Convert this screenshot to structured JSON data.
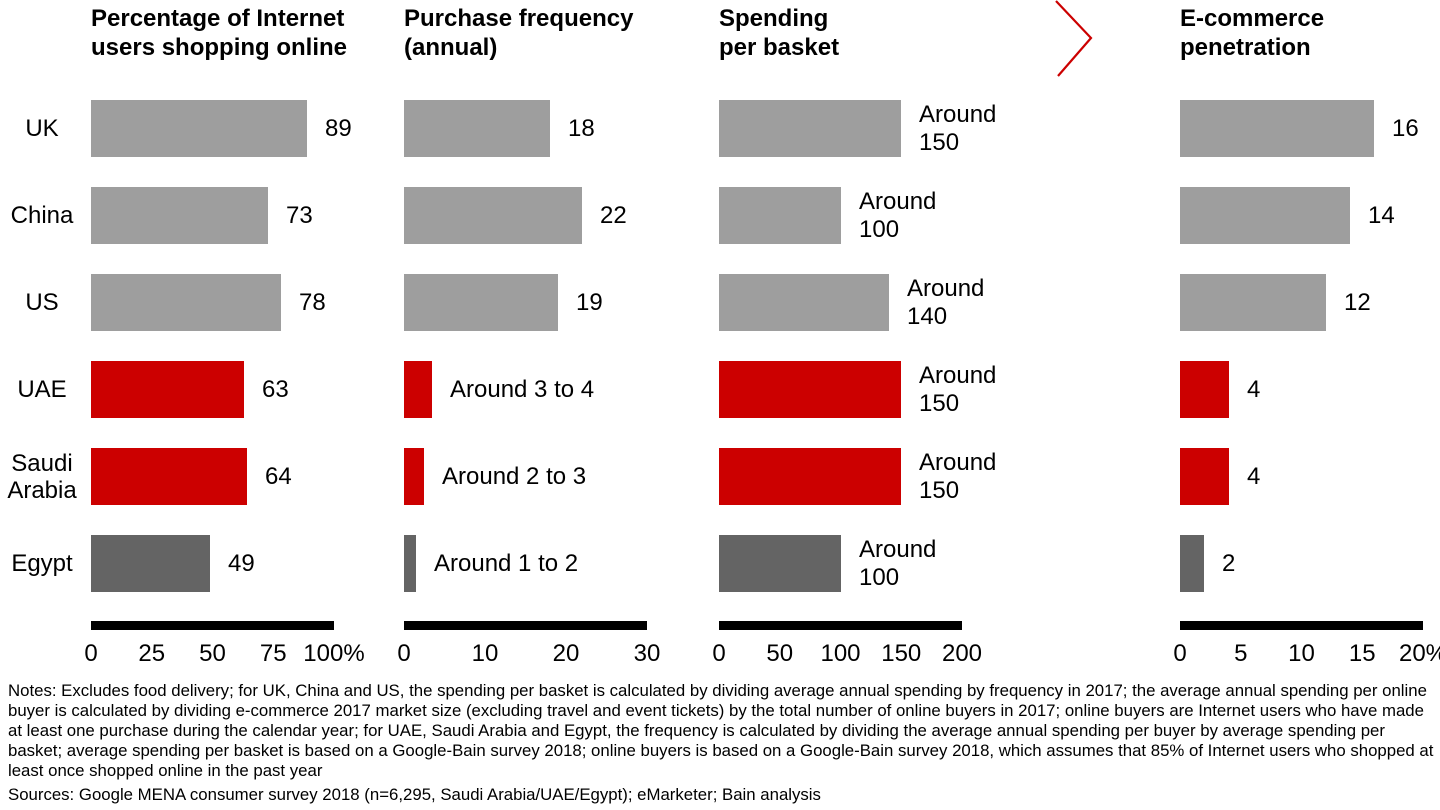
{
  "colors": {
    "bar_gray": "#9e9e9e",
    "bar_dark_gray": "#646464",
    "bar_red": "#cc0000",
    "axis_black": "#000000",
    "chevron_red": "#cc0000"
  },
  "countries": [
    {
      "name": "UK",
      "label_lines": [
        "UK"
      ],
      "color": "gray"
    },
    {
      "name": "China",
      "label_lines": [
        "China"
      ],
      "color": "gray"
    },
    {
      "name": "US",
      "label_lines": [
        "US"
      ],
      "color": "gray"
    },
    {
      "name": "UAE",
      "label_lines": [
        "UAE"
      ],
      "color": "red"
    },
    {
      "name": "Saudi Arabia",
      "label_lines": [
        "Saudi",
        "Arabia"
      ],
      "color": "red"
    },
    {
      "name": "Egypt",
      "label_lines": [
        "Egypt"
      ],
      "color": "dark"
    }
  ],
  "chart_data": [
    {
      "type": "bar",
      "orientation": "horizontal",
      "title": "Percentage of Internet users shopping online",
      "title_lines": [
        "Percentage of Internet",
        "users shopping online"
      ],
      "categories": [
        "UK",
        "China",
        "US",
        "UAE",
        "Saudi Arabia",
        "Egypt"
      ],
      "values": [
        89,
        73,
        78,
        63,
        64,
        49
      ],
      "value_labels": [
        [
          "89"
        ],
        [
          "73"
        ],
        [
          "78"
        ],
        [
          "63"
        ],
        [
          "64"
        ],
        [
          "49"
        ]
      ],
      "xlim": [
        0,
        100
      ],
      "tick_labels": [
        "0",
        "25",
        "50",
        "75",
        "100%"
      ],
      "grid": false,
      "legend": null
    },
    {
      "type": "bar",
      "orientation": "horizontal",
      "title": "Purchase frequency (annual)",
      "title_lines": [
        "Purchase frequency",
        "(annual)"
      ],
      "categories": [
        "UK",
        "China",
        "US",
        "UAE",
        "Saudi Arabia",
        "Egypt"
      ],
      "values": [
        18,
        22,
        19,
        3.5,
        2.5,
        1.5
      ],
      "value_labels": [
        [
          "18"
        ],
        [
          "22"
        ],
        [
          "19"
        ],
        [
          "Around 3 to 4"
        ],
        [
          "Around 2 to 3"
        ],
        [
          "Around 1 to 2"
        ]
      ],
      "xlim": [
        0,
        30
      ],
      "tick_labels": [
        "0",
        "10",
        "20",
        "30"
      ],
      "grid": false,
      "legend": null
    },
    {
      "type": "bar",
      "orientation": "horizontal",
      "title": "Spending per basket",
      "title_lines": [
        "Spending",
        "per basket"
      ],
      "categories": [
        "UK",
        "China",
        "US",
        "UAE",
        "Saudi Arabia",
        "Egypt"
      ],
      "values": [
        150,
        100,
        140,
        150,
        150,
        100
      ],
      "value_labels": [
        [
          "Around",
          "150"
        ],
        [
          "Around",
          "100"
        ],
        [
          "Around",
          "140"
        ],
        [
          "Around",
          "150"
        ],
        [
          "Around",
          "150"
        ],
        [
          "Around",
          "100"
        ]
      ],
      "xlim": [
        0,
        200
      ],
      "tick_labels": [
        "0",
        "50",
        "100",
        "150",
        "200"
      ],
      "grid": false,
      "legend": null
    },
    {
      "type": "bar",
      "orientation": "horizontal",
      "title": "E-commerce penetration",
      "title_lines": [
        "E-commerce",
        "penetration"
      ],
      "categories": [
        "UK",
        "China",
        "US",
        "UAE",
        "Saudi Arabia",
        "Egypt"
      ],
      "values": [
        16,
        14,
        12,
        4,
        4,
        2
      ],
      "value_labels": [
        [
          "16"
        ],
        [
          "14"
        ],
        [
          "12"
        ],
        [
          "4"
        ],
        [
          "4"
        ],
        [
          "2"
        ]
      ],
      "xlim": [
        0,
        20
      ],
      "tick_labels": [
        "0",
        "5",
        "10",
        "15",
        "20%"
      ],
      "grid": false,
      "legend": null
    }
  ],
  "notes": "Notes: Excludes food delivery; for UK, China and US, the spending per basket is calculated by dividing average annual spending by frequency in 2017; the average annual spending per online buyer is calculated by dividing e-commerce 2017 market size (excluding travel and event tickets) by the total number of online buyers in 2017; online buyers are Internet users who have made at least one purchase during the calendar year; for UAE, Saudi Arabia and Egypt, the frequency is calculated by dividing the average annual spending per buyer by average spending per basket; average spending per basket is based on a Google-Bain survey 2018; online buyers is based on a Google-Bain survey 2018, which assumes that 85% of Internet users who shopped at least once shopped online in the past year",
  "sources": "Sources: Google MENA consumer survey 2018 (n=6,295, Saudi Arabia/UAE/Egypt); eMarketer; Bain analysis"
}
